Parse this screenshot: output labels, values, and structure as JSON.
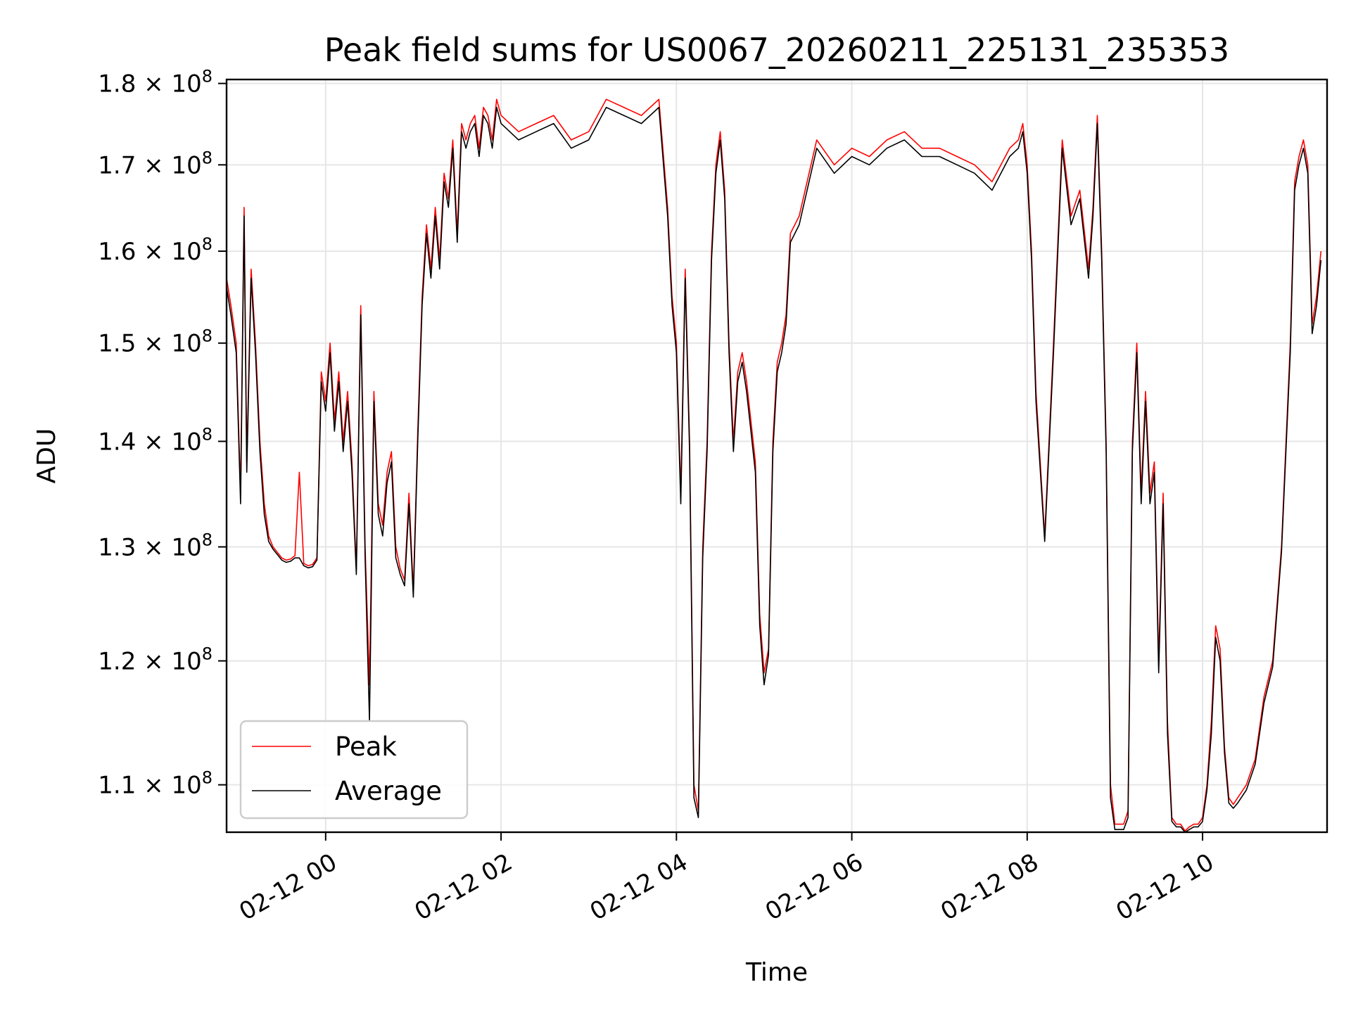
{
  "chart_data": {
    "type": "line",
    "title": "Peak field sums for US0067_20260211_225131_235353",
    "xlabel": "Time",
    "ylabel": "ADU",
    "yscale": "log",
    "grid": true,
    "legend_position": "lower-left",
    "xlim_hours": [
      -1.13,
      11.42
    ],
    "ylim": [
      106400000,
      180500000
    ],
    "x_ticks": [
      {
        "hour": 0,
        "label": "02-12 00"
      },
      {
        "hour": 2,
        "label": "02-12 02"
      },
      {
        "hour": 4,
        "label": "02-12 04"
      },
      {
        "hour": 6,
        "label": "02-12 06"
      },
      {
        "hour": 8,
        "label": "02-12 08"
      },
      {
        "hour": 10,
        "label": "02-12 10"
      }
    ],
    "y_ticks": [
      {
        "value": 110000000,
        "mantissa": "1.1"
      },
      {
        "value": 120000000,
        "mantissa": "1.2"
      },
      {
        "value": 130000000,
        "mantissa": "1.3"
      },
      {
        "value": 140000000,
        "mantissa": "1.4"
      },
      {
        "value": 150000000,
        "mantissa": "1.5"
      },
      {
        "value": 160000000,
        "mantissa": "1.6"
      },
      {
        "value": 170000000,
        "mantissa": "1.7"
      },
      {
        "value": 180000000,
        "mantissa": "1.8"
      }
    ],
    "y_tick_suffix": {
      "times": "×",
      "base": "10",
      "exponent": "8"
    },
    "series": [
      {
        "name": "Peak",
        "color": "#ff0000"
      },
      {
        "name": "Average",
        "color": "#000000"
      }
    ],
    "x_hours": [
      -1.13,
      -1.08,
      -1.02,
      -0.97,
      -0.93,
      -0.9,
      -0.85,
      -0.8,
      -0.75,
      -0.7,
      -0.65,
      -0.6,
      -0.55,
      -0.5,
      -0.45,
      -0.4,
      -0.35,
      -0.3,
      -0.25,
      -0.2,
      -0.15,
      -0.1,
      -0.05,
      0.0,
      0.05,
      0.1,
      0.15,
      0.2,
      0.25,
      0.3,
      0.35,
      0.4,
      0.45,
      0.5,
      0.55,
      0.6,
      0.65,
      0.7,
      0.75,
      0.8,
      0.85,
      0.9,
      0.95,
      1.0,
      1.05,
      1.1,
      1.15,
      1.2,
      1.25,
      1.3,
      1.35,
      1.4,
      1.45,
      1.5,
      1.55,
      1.6,
      1.65,
      1.7,
      1.75,
      1.8,
      1.85,
      1.9,
      1.95,
      2.0,
      2.2,
      2.4,
      2.6,
      2.8,
      3.0,
      3.2,
      3.4,
      3.6,
      3.8,
      3.9,
      3.95,
      4.0,
      4.05,
      4.1,
      4.15,
      4.2,
      4.25,
      4.3,
      4.35,
      4.4,
      4.45,
      4.5,
      4.55,
      4.6,
      4.65,
      4.7,
      4.75,
      4.8,
      4.85,
      4.9,
      4.95,
      5.0,
      5.05,
      5.1,
      5.15,
      5.2,
      5.25,
      5.3,
      5.4,
      5.6,
      5.8,
      6.0,
      6.2,
      6.4,
      6.6,
      6.8,
      7.0,
      7.2,
      7.4,
      7.6,
      7.8,
      7.9,
      7.95,
      8.0,
      8.05,
      8.1,
      8.2,
      8.3,
      8.4,
      8.5,
      8.6,
      8.7,
      8.75,
      8.8,
      8.85,
      8.9,
      8.95,
      9.0,
      9.05,
      9.1,
      9.15,
      9.2,
      9.25,
      9.3,
      9.35,
      9.4,
      9.45,
      9.5,
      9.55,
      9.6,
      9.65,
      9.7,
      9.75,
      9.8,
      9.85,
      9.9,
      9.95,
      10.0,
      10.05,
      10.1,
      10.15,
      10.2,
      10.25,
      10.3,
      10.35,
      10.4,
      10.45,
      10.5,
      10.6,
      10.7,
      10.8,
      10.9,
      11.0,
      11.05,
      11.1,
      11.15,
      11.2,
      11.25,
      11.3,
      11.35,
      11.42
    ],
    "peak_values": [
      157,
      154,
      150,
      135,
      165,
      138,
      158,
      150,
      140,
      134,
      131,
      130,
      129.5,
      129,
      128.8,
      128.9,
      129.2,
      137,
      128.5,
      128.3,
      128.4,
      129,
      147,
      144,
      150,
      142,
      147,
      140,
      145,
      138,
      128,
      154,
      130,
      118,
      145,
      134,
      132,
      137,
      139,
      130,
      128,
      127,
      135,
      126,
      141,
      155,
      163,
      158,
      165,
      159,
      169,
      166,
      173,
      162,
      175,
      173,
      175,
      176,
      172,
      177,
      176,
      173,
      178,
      176,
      174,
      175,
      176,
      173,
      174,
      178,
      177,
      176,
      178,
      165,
      155,
      150,
      135,
      158,
      140,
      110,
      108,
      130,
      140,
      160,
      170,
      174,
      167,
      150,
      140,
      147,
      149,
      146,
      142,
      138,
      124,
      119,
      121,
      140,
      148,
      150,
      153,
      162,
      164,
      173,
      170,
      172,
      171,
      173,
      174,
      172,
      172,
      171,
      170,
      168,
      172,
      173,
      175,
      170,
      160,
      145,
      131,
      150,
      173,
      164,
      167,
      158,
      165,
      176,
      160,
      140,
      110,
      107,
      107,
      107,
      108,
      140,
      150,
      135,
      145,
      135,
      138,
      120,
      135,
      115,
      107.5,
      107,
      107,
      106.5,
      106.8,
      107,
      107,
      107.5,
      110,
      115,
      123,
      121,
      113,
      109,
      108.5,
      109,
      109.5,
      110,
      112,
      117,
      120,
      130,
      150,
      168,
      171,
      173,
      170,
      152,
      155,
      160
    ],
    "avg_values": [
      156,
      153,
      149,
      134,
      164,
      137,
      157,
      149,
      139,
      133,
      130.5,
      129.8,
      129.3,
      128.8,
      128.6,
      128.7,
      129,
      129,
      128.3,
      128.1,
      128.2,
      128.8,
      146,
      143,
      149,
      141,
      146,
      139,
      144,
      137,
      127.5,
      153,
      129,
      115,
      144,
      133,
      131,
      136,
      138,
      129,
      127.5,
      126.5,
      134,
      125.5,
      140,
      154,
      162,
      157,
      164,
      158,
      168,
      165,
      172,
      161,
      174,
      172,
      174,
      175,
      171,
      176,
      175,
      172,
      177,
      175,
      173,
      174,
      175,
      172,
      173,
      177,
      176,
      175,
      177,
      164,
      154,
      149,
      134,
      157,
      139,
      109,
      107.5,
      129,
      139,
      159,
      169,
      173,
      166,
      149,
      139,
      146,
      148,
      145,
      141,
      137,
      123,
      118,
      120.5,
      139,
      147,
      149,
      152,
      161,
      163,
      172,
      169,
      171,
      170,
      172,
      173,
      171,
      171,
      170,
      169,
      167,
      171,
      172,
      174,
      169,
      159,
      144,
      130.5,
      149,
      172,
      163,
      166,
      157,
      164,
      175,
      159,
      139,
      109,
      106.6,
      106.6,
      106.6,
      107.5,
      139,
      149,
      134,
      144,
      134,
      137,
      119,
      134,
      114,
      107.2,
      106.8,
      106.8,
      106.4,
      106.6,
      106.8,
      106.8,
      107.2,
      109.6,
      114,
      122,
      120,
      112.5,
      108.6,
      108.2,
      108.6,
      109.1,
      109.6,
      111.6,
      116.5,
      119.5,
      129.5,
      149,
      167,
      170,
      172,
      169,
      151,
      154,
      159
    ]
  }
}
